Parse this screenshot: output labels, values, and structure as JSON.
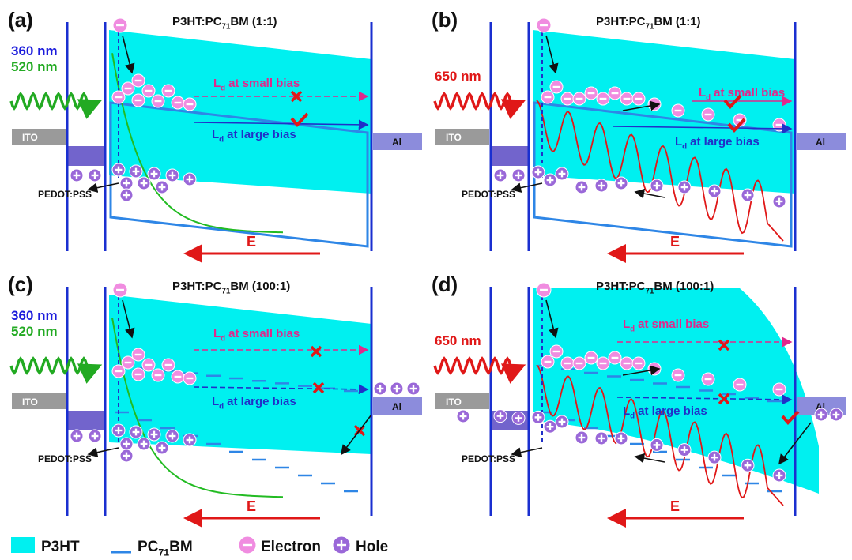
{
  "panels": [
    {
      "label": "(a)",
      "title": {
        "main": "P3HT:PC",
        "sub": "71",
        "rest": "BM (1:1)"
      },
      "wavelengths": [
        {
          "text": "360 nm",
          "color": "#1c1cdc"
        },
        {
          "text": "520 nm",
          "color": "#22aa22"
        }
      ],
      "ito": "ITO",
      "al": "Al",
      "pedot": "PEDOT:PSS",
      "small_bias": {
        "symbol": "L",
        "sub": "d",
        "text": "at small bias"
      },
      "large_bias": {
        "symbol": "L",
        "sub": "d",
        "text": "at large bias"
      },
      "field": "E"
    },
    {
      "label": "(b)",
      "title": {
        "main": "P3HT:PC",
        "sub": "71",
        "rest": "BM (1:1)"
      },
      "wavelengths": [
        {
          "text": "650 nm",
          "color": "#e01818"
        }
      ],
      "ito": "ITO",
      "al": "Al",
      "pedot": "PEDOT:PSS",
      "small_bias": {
        "symbol": "L",
        "sub": "d",
        "text": "at small bias"
      },
      "large_bias": {
        "symbol": "L",
        "sub": "d",
        "text": "at large bias"
      },
      "field": "E"
    },
    {
      "label": "(c)",
      "title": {
        "main": "P3HT:PC",
        "sub": "71",
        "rest": "BM (100:1)"
      },
      "wavelengths": [
        {
          "text": "360 nm",
          "color": "#1c1cdc"
        },
        {
          "text": "520 nm",
          "color": "#22aa22"
        }
      ],
      "ito": "ITO",
      "al": "Al",
      "pedot": "PEDOT:PSS",
      "small_bias": {
        "symbol": "L",
        "sub": "d",
        "text": "at small bias"
      },
      "large_bias": {
        "symbol": "L",
        "sub": "d",
        "text": "at large bias"
      },
      "field": "E"
    },
    {
      "label": "(d)",
      "title": {
        "main": "P3HT:PC",
        "sub": "71",
        "rest": "BM (100:1)"
      },
      "wavelengths": [
        {
          "text": "650 nm",
          "color": "#e01818"
        }
      ],
      "ito": "ITO",
      "al": "Al",
      "pedot": "PEDOT:PSS",
      "small_bias": {
        "symbol": "L",
        "sub": "d",
        "text": "at small bias"
      },
      "large_bias": {
        "symbol": "L",
        "sub": "d",
        "text": "at large bias"
      },
      "field": "E"
    }
  ],
  "legend": {
    "p3ht": "P3HT",
    "pcbm": {
      "main": "PC",
      "sub": "71",
      "rest": "BM"
    },
    "electron": "Electron",
    "hole": "Hole"
  }
}
